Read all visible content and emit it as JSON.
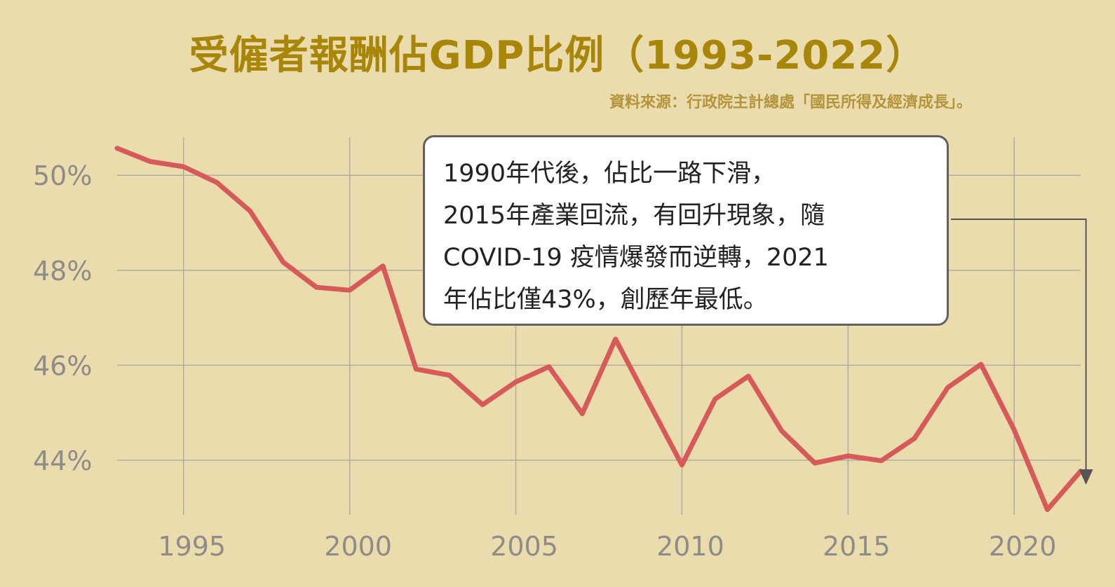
{
  "chart_data": {
    "type": "line",
    "title": "受僱者報酬佔GDP比例（1993-2022）",
    "source": "資料來源：行政院主計總處「國民所得及經濟成長」。",
    "xlabel": "",
    "ylabel": "",
    "x": [
      1993,
      1994,
      1995,
      1996,
      1997,
      1998,
      1999,
      2000,
      2001,
      2002,
      2003,
      2004,
      2005,
      2006,
      2007,
      2008,
      2009,
      2010,
      2011,
      2012,
      2013,
      2014,
      2015,
      2016,
      2017,
      2018,
      2019,
      2020,
      2021,
      2022
    ],
    "series": [
      {
        "values": [
          50.57,
          50.29,
          50.18,
          49.85,
          49.25,
          48.17,
          47.64,
          47.58,
          48.09,
          45.92,
          45.79,
          45.17,
          45.65,
          45.97,
          44.98,
          46.55,
          45.22,
          43.9,
          45.29,
          45.77,
          44.62,
          43.94,
          44.09,
          43.99,
          44.46,
          45.53,
          46.02,
          44.64,
          42.96,
          43.77
        ],
        "color": "#d65a5a"
      }
    ],
    "xticks": [
      1995,
      2000,
      2005,
      2010,
      2015,
      2020
    ],
    "yticks": [
      44,
      46,
      48,
      50
    ],
    "ytick_labels": [
      "44%",
      "46%",
      "48%",
      "50%"
    ],
    "xlim": [
      1993,
      2022
    ],
    "ylim": [
      42.85,
      50.8
    ],
    "grid": true,
    "legend": "none",
    "annotation": {
      "lines": [
        "1990年代後，佔比一路下滑，",
        "2015年產業回流，有回升現象，隨",
        "COVID-19 疫情爆發而逆轉，2021",
        "年佔比僅43%，創歷年最低。"
      ],
      "points_to_x": 2021
    },
    "colors": {
      "background": "#ebdcae",
      "title": "#a8860a",
      "source": "#b4943a",
      "grid": "#b0aca4",
      "tick_text": "#8e8c88"
    }
  }
}
